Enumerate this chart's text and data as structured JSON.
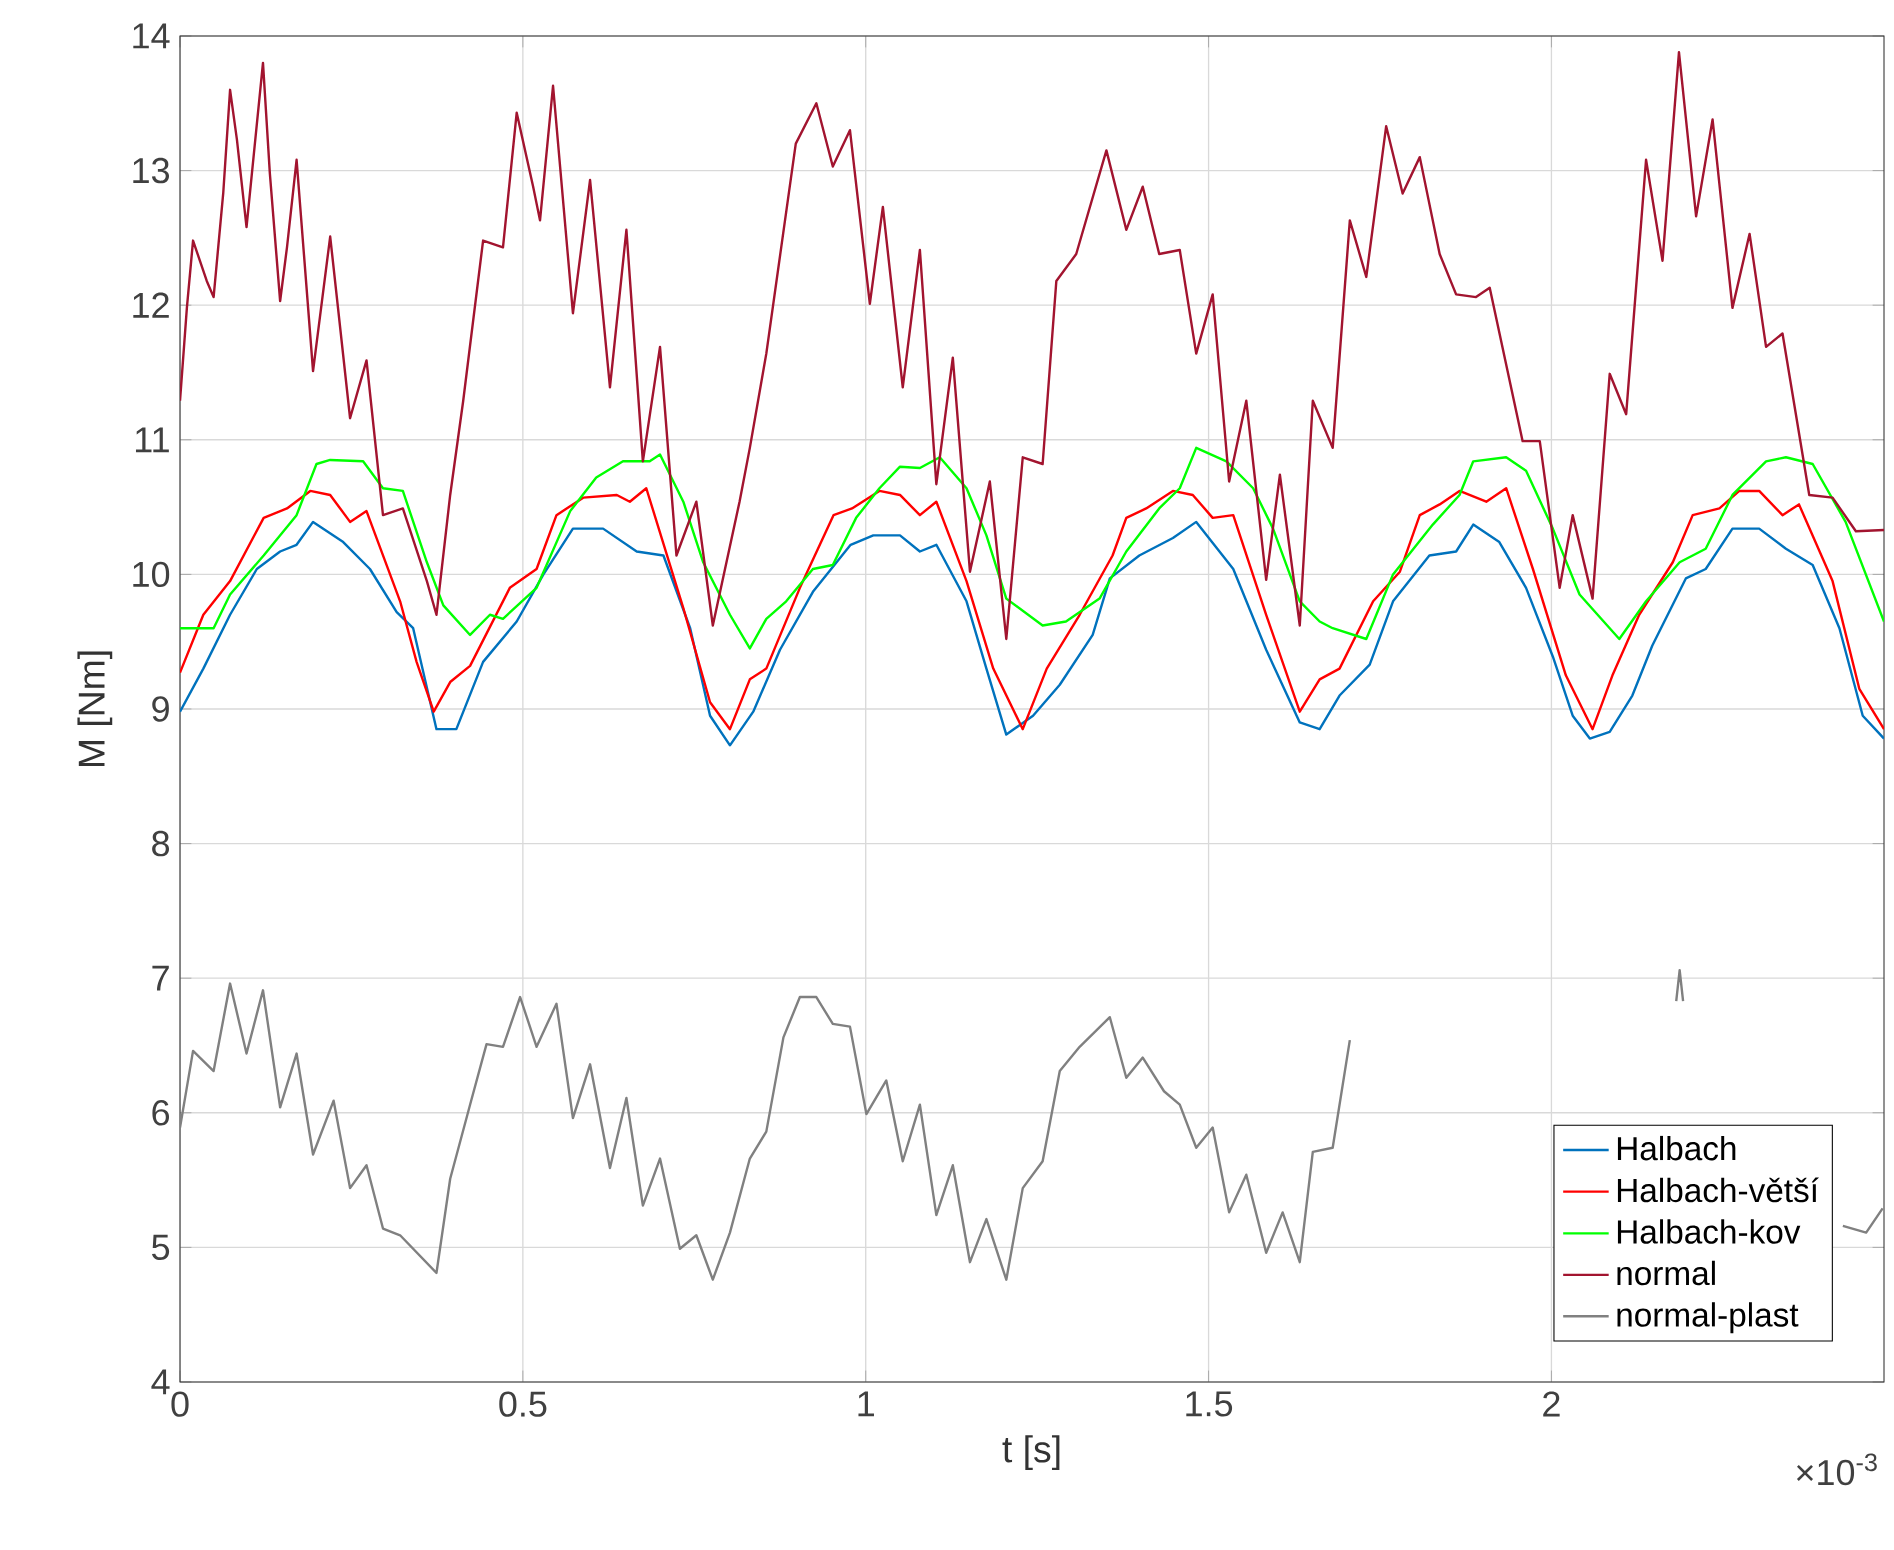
{
  "chart_data": {
    "type": "line",
    "xlabel": "t [s]",
    "ylabel": "M [Nm]",
    "annotations": [
      "×10$^{-3}$"
    ],
    "xlim": [
      0,
      2.485
    ],
    "ylim": [
      4,
      14
    ],
    "xticks": [
      0,
      0.5,
      1,
      1.5,
      2
    ],
    "yticks": [
      4,
      5,
      6,
      7,
      8,
      9,
      10,
      11,
      12,
      13,
      14
    ],
    "grid": true,
    "legend": "bottom right",
    "marker": "none",
    "line_style": "solid",
    "series": [
      {
        "name": "Halbach",
        "color": "#0072bd",
        "x": [
          0,
          0.034,
          0.073,
          0.112,
          0.146,
          0.17,
          0.194,
          0.238,
          0.277,
          0.316,
          0.34,
          0.374,
          0.403,
          0.442,
          0.491,
          0.53,
          0.573,
          0.617,
          0.666,
          0.705,
          0.744,
          0.773,
          0.802,
          0.836,
          0.875,
          0.923,
          0.978,
          1.011,
          1.05,
          1.079,
          1.103,
          1.147,
          1.176,
          1.205,
          1.244,
          1.283,
          1.331,
          1.356,
          1.399,
          1.448,
          1.482,
          1.536,
          1.584,
          1.633,
          1.662,
          1.691,
          1.735,
          1.769,
          1.822,
          1.861,
          1.886,
          1.924,
          1.963,
          2.002,
          2.031,
          2.056,
          2.085,
          2.118,
          2.147,
          2.196,
          2.225,
          2.264,
          2.303,
          2.342,
          2.381,
          2.42,
          2.454,
          2.485
        ],
        "values": [
          8.98,
          9.3,
          9.7,
          10.04,
          10.17,
          10.22,
          10.39,
          10.24,
          10.04,
          9.72,
          9.6,
          8.85,
          8.85,
          9.35,
          9.65,
          10.0,
          10.34,
          10.34,
          10.17,
          10.14,
          9.6,
          8.95,
          8.73,
          8.98,
          9.44,
          9.87,
          10.22,
          10.29,
          10.29,
          10.17,
          10.22,
          9.8,
          9.3,
          8.81,
          8.95,
          9.18,
          9.55,
          9.97,
          10.14,
          10.27,
          10.39,
          10.04,
          9.44,
          8.9,
          8.85,
          9.1,
          9.33,
          9.8,
          10.14,
          10.17,
          10.37,
          10.24,
          9.9,
          9.39,
          8.95,
          8.78,
          8.83,
          9.1,
          9.47,
          9.97,
          10.04,
          10.34,
          10.34,
          10.19,
          10.07,
          9.6,
          8.95,
          8.78
        ]
      },
      {
        "name": "Halbach-větší",
        "color": "#ff0000",
        "x": [
          0,
          0.034,
          0.073,
          0.122,
          0.156,
          0.19,
          0.219,
          0.248,
          0.272,
          0.321,
          0.345,
          0.37,
          0.394,
          0.423,
          0.481,
          0.52,
          0.549,
          0.588,
          0.637,
          0.656,
          0.68,
          0.734,
          0.773,
          0.802,
          0.831,
          0.855,
          0.904,
          0.953,
          0.98,
          1.02,
          1.05,
          1.079,
          1.103,
          1.147,
          1.186,
          1.229,
          1.264,
          1.312,
          1.36,
          1.38,
          1.409,
          1.448,
          1.477,
          1.506,
          1.536,
          1.584,
          1.633,
          1.662,
          1.691,
          1.74,
          1.779,
          1.808,
          1.837,
          1.866,
          1.905,
          1.934,
          1.973,
          2.021,
          2.06,
          2.089,
          2.128,
          2.177,
          2.206,
          2.245,
          2.274,
          2.303,
          2.337,
          2.361,
          2.41,
          2.449,
          2.485
        ],
        "values": [
          9.27,
          9.7,
          9.95,
          10.42,
          10.49,
          10.62,
          10.59,
          10.39,
          10.47,
          9.8,
          9.35,
          8.98,
          9.2,
          9.32,
          9.9,
          10.04,
          10.44,
          10.57,
          10.59,
          10.54,
          10.64,
          9.75,
          9.05,
          8.85,
          9.22,
          9.3,
          9.9,
          10.44,
          10.49,
          10.62,
          10.59,
          10.44,
          10.54,
          9.95,
          9.3,
          8.85,
          9.3,
          9.7,
          10.14,
          10.42,
          10.49,
          10.62,
          10.59,
          10.42,
          10.44,
          9.7,
          8.98,
          9.22,
          9.3,
          9.8,
          10.02,
          10.44,
          10.52,
          10.62,
          10.54,
          10.64,
          10.04,
          9.25,
          8.85,
          9.25,
          9.7,
          10.09,
          10.44,
          10.49,
          10.62,
          10.62,
          10.44,
          10.52,
          9.95,
          9.15,
          8.85
        ]
      },
      {
        "name": "Halbach-kov",
        "color": "#00ff00",
        "x": [
          0,
          0.049,
          0.073,
          0.122,
          0.17,
          0.199,
          0.219,
          0.267,
          0.296,
          0.325,
          0.36,
          0.384,
          0.423,
          0.452,
          0.471,
          0.52,
          0.569,
          0.607,
          0.646,
          0.685,
          0.7,
          0.734,
          0.763,
          0.802,
          0.831,
          0.855,
          0.884,
          0.923,
          0.952,
          0.986,
          1.02,
          1.05,
          1.079,
          1.108,
          1.147,
          1.176,
          1.205,
          1.258,
          1.292,
          1.341,
          1.38,
          1.428,
          1.458,
          1.482,
          1.526,
          1.565,
          1.594,
          1.633,
          1.662,
          1.681,
          1.73,
          1.769,
          1.827,
          1.866,
          1.886,
          1.934,
          1.963,
          2.002,
          2.041,
          2.099,
          2.138,
          2.187,
          2.225,
          2.264,
          2.313,
          2.342,
          2.381,
          2.429,
          2.485
        ],
        "values": [
          9.6,
          9.6,
          9.85,
          10.14,
          10.44,
          10.82,
          10.85,
          10.84,
          10.64,
          10.62,
          10.09,
          9.77,
          9.55,
          9.7,
          9.67,
          9.9,
          10.47,
          10.72,
          10.84,
          10.84,
          10.89,
          10.54,
          10.09,
          9.7,
          9.45,
          9.67,
          9.8,
          10.04,
          10.07,
          10.42,
          10.64,
          10.8,
          10.79,
          10.87,
          10.64,
          10.29,
          9.82,
          9.62,
          9.65,
          9.82,
          10.17,
          10.49,
          10.64,
          10.94,
          10.84,
          10.64,
          10.34,
          9.8,
          9.65,
          9.6,
          9.52,
          10.0,
          10.37,
          10.59,
          10.84,
          10.87,
          10.77,
          10.34,
          9.85,
          9.52,
          9.8,
          10.09,
          10.19,
          10.59,
          10.84,
          10.87,
          10.82,
          10.39,
          9.65
        ]
      },
      {
        "name": "normal",
        "color": "#a2142f",
        "x": [
          0,
          0.01,
          0.019,
          0.039,
          0.049,
          0.063,
          0.073,
          0.083,
          0.097,
          0.121,
          0.131,
          0.146,
          0.156,
          0.17,
          0.194,
          0.219,
          0.248,
          0.272,
          0.296,
          0.325,
          0.36,
          0.374,
          0.394,
          0.413,
          0.442,
          0.471,
          0.491,
          0.515,
          0.525,
          0.544,
          0.573,
          0.598,
          0.627,
          0.651,
          0.675,
          0.7,
          0.724,
          0.753,
          0.777,
          0.816,
          0.831,
          0.855,
          0.898,
          0.928,
          0.952,
          0.977,
          1.006,
          1.025,
          1.054,
          1.079,
          1.103,
          1.127,
          1.152,
          1.181,
          1.205,
          1.229,
          1.258,
          1.278,
          1.307,
          1.351,
          1.38,
          1.404,
          1.428,
          1.458,
          1.482,
          1.506,
          1.53,
          1.555,
          1.584,
          1.604,
          1.633,
          1.652,
          1.681,
          1.706,
          1.73,
          1.759,
          1.783,
          1.808,
          1.837,
          1.861,
          1.89,
          1.91,
          1.958,
          1.983,
          2.012,
          2.031,
          2.06,
          2.085,
          2.109,
          2.138,
          2.162,
          2.186,
          2.211,
          2.235,
          2.264,
          2.289,
          2.313,
          2.337,
          2.376,
          2.41,
          2.444,
          2.485
        ],
        "values": [
          11.29,
          11.98,
          12.48,
          12.18,
          12.06,
          12.83,
          13.6,
          13.23,
          12.58,
          13.8,
          12.98,
          12.03,
          12.43,
          13.08,
          11.51,
          12.51,
          11.16,
          11.59,
          10.44,
          10.49,
          9.95,
          9.7,
          10.59,
          11.29,
          12.48,
          12.43,
          13.43,
          12.88,
          12.63,
          13.63,
          11.94,
          12.93,
          11.39,
          12.56,
          10.84,
          11.69,
          10.14,
          10.54,
          9.62,
          10.54,
          10.94,
          11.64,
          13.2,
          13.5,
          13.03,
          13.3,
          12.01,
          12.73,
          11.39,
          12.41,
          10.67,
          11.61,
          10.02,
          10.69,
          9.52,
          10.87,
          10.82,
          12.18,
          12.38,
          13.15,
          12.56,
          12.88,
          12.38,
          12.41,
          11.64,
          12.08,
          10.69,
          11.29,
          9.96,
          10.74,
          9.62,
          11.29,
          10.94,
          12.63,
          12.21,
          13.33,
          12.83,
          13.1,
          12.38,
          12.08,
          12.06,
          12.13,
          10.99,
          10.99,
          9.9,
          10.44,
          9.82,
          11.49,
          11.19,
          13.08,
          12.33,
          13.88,
          12.66,
          13.38,
          11.98,
          12.53,
          11.69,
          11.79,
          10.59,
          10.57,
          10.32,
          10.33
        ]
      },
      {
        "name": "normal-plast",
        "color": "#808080",
        "x": [
          0,
          0.019,
          0.049,
          0.073,
          0.097,
          0.121,
          0.146,
          0.17,
          0.194,
          0.224,
          0.248,
          0.272,
          0.296,
          0.321,
          0.374,
          0.394,
          0.423,
          0.447,
          0.471,
          0.496,
          0.52,
          0.549,
          0.573,
          0.598,
          0.627,
          0.651,
          0.675,
          0.7,
          0.729,
          0.753,
          0.777,
          0.802,
          0.831,
          0.855,
          0.88,
          0.904,
          0.928,
          0.952,
          0.977,
          1.001,
          1.03,
          1.054,
          1.079,
          1.103,
          1.127,
          1.152,
          1.176,
          1.205,
          1.229,
          1.258,
          1.283,
          1.312,
          1.356,
          1.38,
          1.404,
          1.435,
          1.458,
          1.482,
          1.506,
          1.53,
          1.555,
          1.584,
          1.608,
          1.633,
          1.652,
          1.681,
          1.706,
          1.71,
          2.182,
          2.187,
          2.192,
          2.3,
          2.425,
          2.459,
          2.483
        ],
        "values": [
          5.89,
          6.46,
          6.31,
          6.96,
          6.44,
          6.91,
          6.04,
          6.44,
          5.69,
          6.09,
          5.44,
          5.61,
          5.14,
          5.09,
          4.81,
          5.51,
          6.06,
          6.51,
          6.49,
          6.86,
          6.49,
          6.81,
          5.96,
          6.36,
          5.59,
          6.11,
          5.31,
          5.66,
          4.99,
          5.09,
          4.76,
          5.11,
          5.66,
          5.86,
          6.56,
          6.86,
          6.86,
          6.66,
          6.64,
          5.99,
          6.24,
          5.64,
          6.06,
          5.24,
          5.61,
          4.89,
          5.21,
          4.76,
          5.44,
          5.64,
          6.31,
          6.49,
          6.71,
          6.26,
          6.41,
          6.16,
          6.06,
          5.74,
          5.89,
          5.26,
          5.54,
          4.96,
          5.26,
          4.89,
          5.71,
          5.74,
          6.54,
          null,
          6.83,
          7.06,
          6.83,
          null,
          5.16,
          5.11,
          5.29
        ]
      }
    ]
  }
}
